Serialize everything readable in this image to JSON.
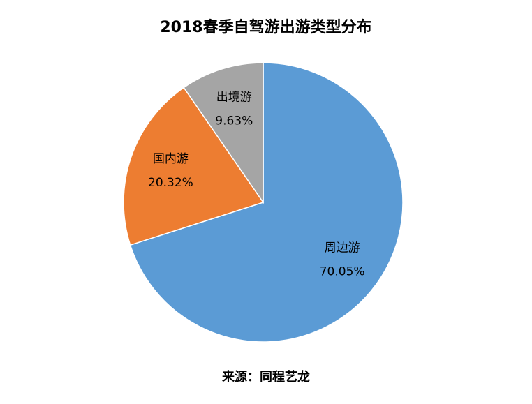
{
  "chart_data": {
    "type": "pie",
    "title": "2018春季自驾游出游类型分布",
    "categories": [
      "周边游",
      "国内游",
      "出境游"
    ],
    "values": [
      70.05,
      20.32,
      9.63
    ],
    "value_labels": [
      "70.05%",
      "20.32%",
      "9.63%"
    ],
    "colors": [
      "#5b9bd5",
      "#ed7d31",
      "#a5a5a5"
    ],
    "source": "来源：同程艺龙"
  }
}
